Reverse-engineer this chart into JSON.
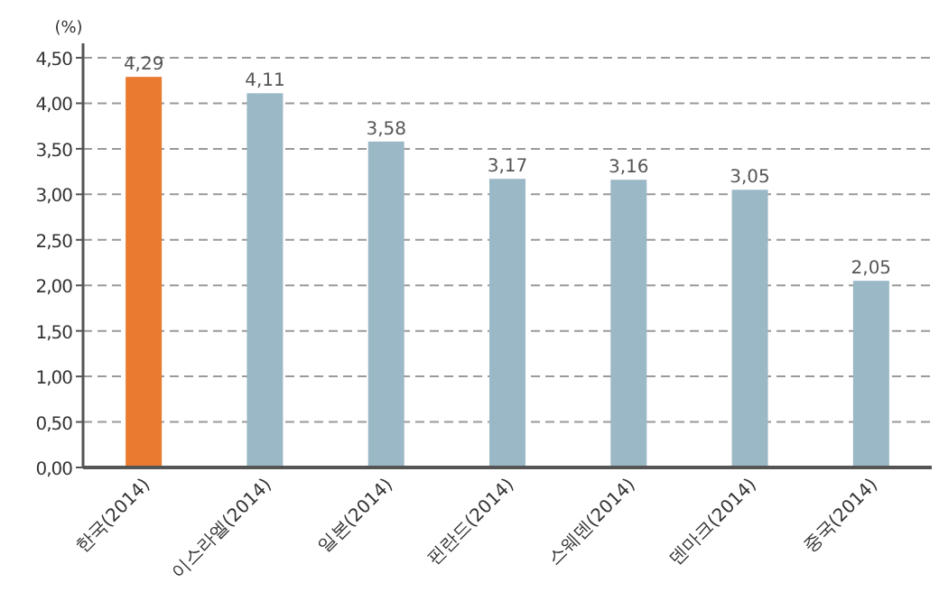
{
  "chart_data": {
    "type": "bar",
    "ylabel": "(%)",
    "categories": [
      "한국(2014)",
      "이스라엘(2014)",
      "일본(2014)",
      "핀란드(2014)",
      "스웨덴(2014)",
      "덴마크(2014)",
      "중국(2014)"
    ],
    "values": [
      4.29,
      4.11,
      3.58,
      3.17,
      3.16,
      3.05,
      2.05
    ],
    "colors": [
      "#e97a30",
      "#9bb8c6",
      "#9bb8c6",
      "#9bb8c6",
      "#9bb8c6",
      "#9bb8c6",
      "#9bb8c6"
    ],
    "value_labels": [
      "4,29",
      "4,11",
      "3,58",
      "3,17",
      "3,16",
      "3,05",
      "2,05"
    ],
    "ylim": [
      0,
      4.5
    ],
    "yticks": [
      {
        "value": 0,
        "label": "0,00"
      },
      {
        "value": 0.5,
        "label": "0,50"
      },
      {
        "value": 1,
        "label": "1,00"
      },
      {
        "value": 1.5,
        "label": "1,50"
      },
      {
        "value": 2,
        "label": "2,00"
      },
      {
        "value": 2.5,
        "label": "2,50"
      },
      {
        "value": 3,
        "label": "3,00"
      },
      {
        "value": 3.5,
        "label": "3,50"
      },
      {
        "value": 4,
        "label": "4,00"
      },
      {
        "value": 4.5,
        "label": "4,50"
      }
    ],
    "grid": "y"
  }
}
